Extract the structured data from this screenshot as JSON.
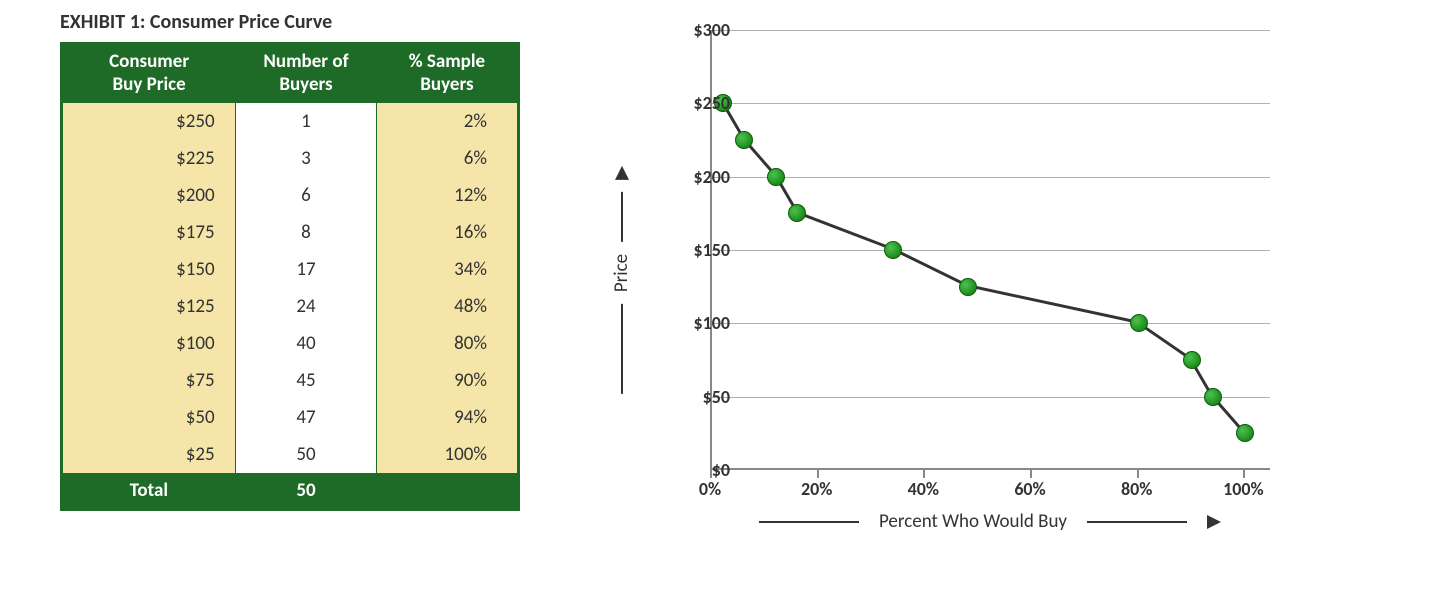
{
  "title": "EXHIBIT 1: Consumer Price Curve",
  "table": {
    "columns": [
      {
        "label": "Consumer\nBuy Price",
        "bg": "#1e6b27",
        "fg": "#ffffff"
      },
      {
        "label": "Number of\nBuyers",
        "bg": "#1e6b27",
        "fg": "#ffffff"
      },
      {
        "label": "% Sample\nBuyers",
        "bg": "#1e6b27",
        "fg": "#ffffff"
      }
    ],
    "col_bg": [
      "#f5e5a8",
      "#ffffff",
      "#f5e5a8"
    ],
    "border_color": "#1e6b27",
    "rows": [
      {
        "price": "$250",
        "buyers": "1",
        "pct": "2%"
      },
      {
        "price": "$225",
        "buyers": "3",
        "pct": "6%"
      },
      {
        "price": "$200",
        "buyers": "6",
        "pct": "12%"
      },
      {
        "price": "$175",
        "buyers": "8",
        "pct": "16%"
      },
      {
        "price": "$150",
        "buyers": "17",
        "pct": "34%"
      },
      {
        "price": "$125",
        "buyers": "24",
        "pct": "48%"
      },
      {
        "price": "$100",
        "buyers": "40",
        "pct": "80%"
      },
      {
        "price": "$75",
        "buyers": "45",
        "pct": "90%"
      },
      {
        "price": "$50",
        "buyers": "47",
        "pct": "94%"
      },
      {
        "price": "$25",
        "buyers": "50",
        "pct": "100%"
      }
    ],
    "total_label": "Total",
    "total_value": "50",
    "font_size": 19
  },
  "chart": {
    "type": "line",
    "ylabel": "Price",
    "xlabel": "Percent Who Would Buy",
    "ylim": [
      0,
      300
    ],
    "xlim": [
      0,
      105
    ],
    "yticks": [
      0,
      50,
      100,
      150,
      200,
      250,
      300
    ],
    "ytick_labels": [
      "$0",
      "$50",
      "$100",
      "$150",
      "$200",
      "$250",
      "$300"
    ],
    "xticks": [
      0,
      20,
      40,
      60,
      80,
      100
    ],
    "xtick_labels": [
      "0%",
      "20%",
      "40%",
      "60%",
      "80%",
      "100%"
    ],
    "grid_color": "#b0b0b0",
    "axis_color": "#888888",
    "line_color": "#333333",
    "line_width": 3,
    "marker_size": 18,
    "marker_fill": "#2aa52a",
    "marker_edge": "#0a5a0a",
    "background_color": "#ffffff",
    "label_fontsize": 19,
    "tick_fontsize": 18,
    "points": [
      {
        "x": 2,
        "y": 250
      },
      {
        "x": 6,
        "y": 225
      },
      {
        "x": 12,
        "y": 200
      },
      {
        "x": 16,
        "y": 175
      },
      {
        "x": 34,
        "y": 150
      },
      {
        "x": 48,
        "y": 125
      },
      {
        "x": 80,
        "y": 100
      },
      {
        "x": 90,
        "y": 75
      },
      {
        "x": 94,
        "y": 50
      },
      {
        "x": 100,
        "y": 25
      }
    ]
  }
}
